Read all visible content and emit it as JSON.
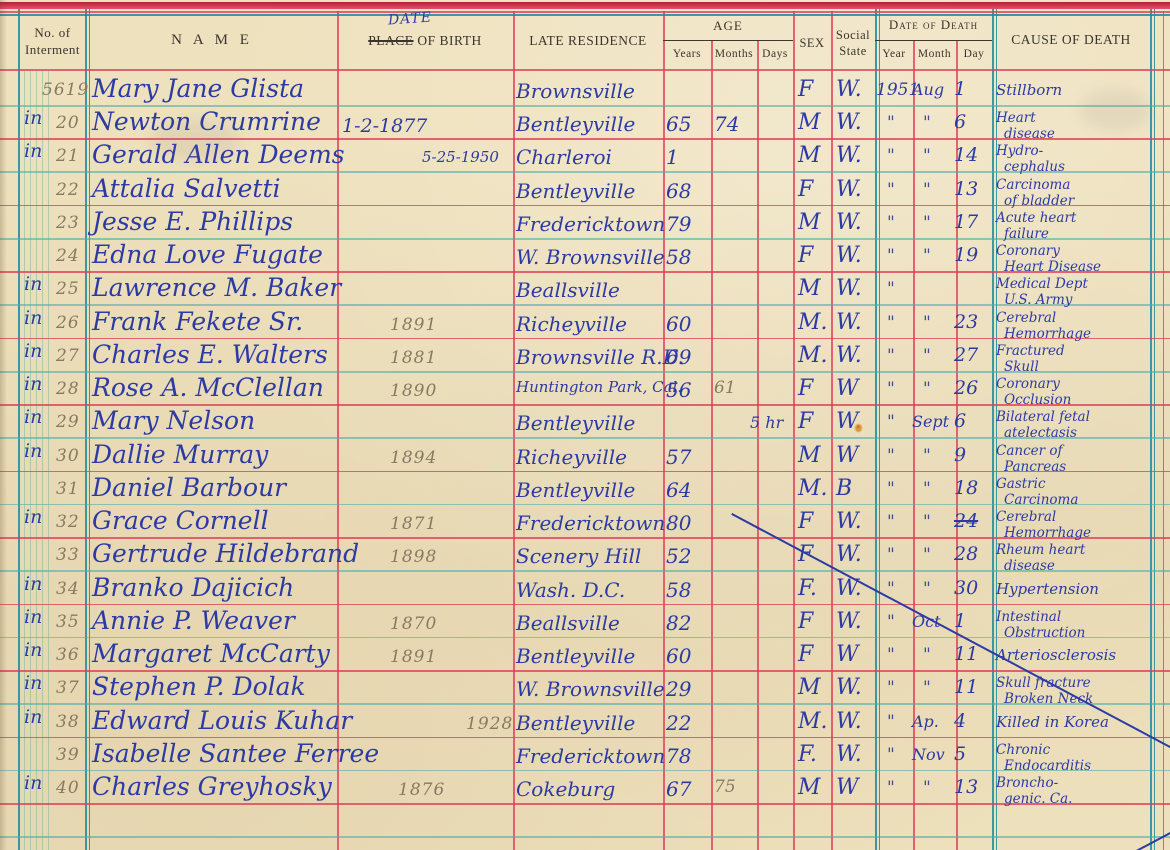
{
  "header": {
    "interment": "No. of\nInterment",
    "name": "N A M E",
    "birth_annotation": "DATE",
    "birth_struck": "PLACE",
    "birth_rest": " OF BIRTH",
    "residence": "LATE  RESIDENCE",
    "age": "AGE",
    "age_years": "Years",
    "age_months": "Months",
    "age_days": "Days",
    "sex": "SEX",
    "social": "Social\nState",
    "death": "Date of Death",
    "death_year": "Year",
    "death_month": "Month",
    "death_day": "Day",
    "cause": "CAUSE OF DEATH"
  },
  "rows": [
    {
      "no": "5619",
      "name": "Mary Jane Glista",
      "residence": "Brownsville",
      "sex": "F",
      "social": "W.",
      "dyear": "1951",
      "dmonth": "Aug",
      "dday": "1",
      "cause": [
        "Stillborn"
      ]
    },
    {
      "prefix": "in",
      "no": "20",
      "name": "Newton Crumrine",
      "birth": "1-2-1877",
      "birth_ink": true,
      "residence": "Bentleyville",
      "years": "65",
      "months": "74",
      "sex": "M",
      "social": "W.",
      "dyear": "\"",
      "dmonth": "\"",
      "dday": "6",
      "cause": [
        "Heart",
        "disease"
      ]
    },
    {
      "prefix": "in",
      "no": "21",
      "name": "Gerald Allen Deems",
      "birth": "5-25-1950",
      "birth_ink": true,
      "residence": "Charleroi",
      "years": "1",
      "sex": "M",
      "social": "W.",
      "dyear": "\"",
      "dmonth": "\"",
      "dday": "14",
      "cause": [
        "Hydro-",
        "cephalus"
      ]
    },
    {
      "no": "22",
      "name": "Attalia Salvetti",
      "residence": "Bentleyville",
      "years": "68",
      "sex": "F",
      "social": "W.",
      "dyear": "\"",
      "dmonth": "\"",
      "dday": "13",
      "cause": [
        "Carcinoma",
        "of bladder"
      ]
    },
    {
      "no": "23",
      "name": "Jesse E. Phillips",
      "residence": "Fredericktown",
      "years": "79",
      "sex": "M",
      "social": "W.",
      "dyear": "\"",
      "dmonth": "\"",
      "dday": "17",
      "cause": [
        "Acute heart",
        "failure"
      ]
    },
    {
      "no": "24",
      "name": "Edna Love Fugate",
      "residence": "W. Brownsville",
      "years": "58",
      "sex": "F",
      "social": "W.",
      "dyear": "\"",
      "dmonth": "\"",
      "dday": "19",
      "cause": [
        "Coronary",
        "Heart Disease"
      ]
    },
    {
      "prefix": "in",
      "no": "25",
      "name": "Lawrence M. Baker",
      "residence": "Beallsville",
      "sex": "M",
      "social": "W.",
      "dyear": "\"",
      "cause": [
        "Medical Dept",
        "U.S. Army"
      ]
    },
    {
      "prefix": "in",
      "no": "26",
      "name": "Frank Fekete Sr.",
      "birth": "1891",
      "residence": "Richeyville",
      "years": "60",
      "sex": "M.",
      "social": "W.",
      "dyear": "\"",
      "dmonth": "\"",
      "dday": "23",
      "cause": [
        "Cerebral",
        "Hemorrhage"
      ]
    },
    {
      "prefix": "in",
      "no": "27",
      "name": "Charles E. Walters",
      "birth": "1881",
      "residence": "Brownsville R.D.",
      "years": "69",
      "sex": "M.",
      "social": "W.",
      "dyear": "\"",
      "dmonth": "\"",
      "dday": "27",
      "cause": [
        "Fractured",
        "Skull"
      ]
    },
    {
      "prefix": "in",
      "no": "28",
      "name": "Rose A. McClellan",
      "birth": "1890",
      "residence": "Huntington Park, Cal.",
      "years": "56",
      "months": "61",
      "months_pencil": true,
      "sex": "F",
      "social": "W",
      "dyear": "\"",
      "dmonth": "\"",
      "dday": "26",
      "cause": [
        "Coronary",
        "Occlusion"
      ]
    },
    {
      "prefix": "in",
      "no": "29",
      "name": "Mary Nelson",
      "residence": "Bentleyville",
      "days": "5 hr",
      "sex": "F",
      "social": "W.",
      "dyear": "\"",
      "dmonth": "Sept",
      "dday": "6",
      "cause": [
        "Bilateral fetal",
        "atelectasis"
      ]
    },
    {
      "prefix": "in",
      "no": "30",
      "name": "Dallie Murray",
      "birth": "1894",
      "residence": "Richeyville",
      "years": "57",
      "sex": "M",
      "social": "W",
      "dyear": "\"",
      "dmonth": "\"",
      "dday": "9",
      "cause": [
        "Cancer of",
        "Pancreas"
      ]
    },
    {
      "no": "31",
      "name": "Daniel Barbour",
      "residence": "Bentleyville",
      "years": "64",
      "sex": "M.",
      "social": "B",
      "dyear": "\"",
      "dmonth": "\"",
      "dday": "18",
      "cause": [
        "Gastric",
        "Carcinoma"
      ]
    },
    {
      "prefix": "in",
      "no": "32",
      "name": "Grace Cornell",
      "birth": "1871",
      "residence": "Fredericktown",
      "years": "80",
      "sex": "F",
      "social": "W.",
      "dyear": "\"",
      "dmonth": "\"",
      "dday": "24",
      "dday_struck": true,
      "cause": [
        "Cerebral",
        "Hemorrhage"
      ]
    },
    {
      "no": "33",
      "name": "Gertrude Hildebrand",
      "birth": "1898",
      "residence": "Scenery Hill",
      "years": "52",
      "sex": "F",
      "social": "W.",
      "dyear": "\"",
      "dmonth": "\"",
      "dday": "28",
      "cause": [
        "Rheum heart",
        "disease"
      ]
    },
    {
      "prefix": "in",
      "no": "34",
      "name": "Branko Dajicich",
      "residence": "Wash. D.C.",
      "years": "58",
      "sex": "F.",
      "social": "W.",
      "dyear": "\"",
      "dmonth": "\"",
      "dday": "30",
      "cause": [
        "Hypertension"
      ]
    },
    {
      "prefix": "in",
      "no": "35",
      "name": "Annie P. Weaver",
      "birth": "1870",
      "residence": "Beallsville",
      "years": "82",
      "sex": "F",
      "social": "W.",
      "dyear": "\"",
      "dmonth": "Oct",
      "dday": "1",
      "cause": [
        "Intestinal",
        "Obstruction"
      ]
    },
    {
      "prefix": "in",
      "no": "36",
      "name": "Margaret McCarty",
      "birth": "1891",
      "residence": "Bentleyville",
      "years": "60",
      "sex": "F",
      "social": "W",
      "dyear": "\"",
      "dmonth": "\"",
      "dday": "11",
      "cause": [
        "Arteriosclerosis"
      ]
    },
    {
      "prefix": "in",
      "no": "37",
      "name": "Stephen P. Dolak",
      "residence": "W. Brownsville",
      "years": "29",
      "sex": "M",
      "social": "W.",
      "dyear": "\"",
      "dmonth": "\"",
      "dday": "11",
      "cause": [
        "Skull fracture",
        "Broken Neck"
      ]
    },
    {
      "prefix": "in",
      "no": "38",
      "name": "Edward Louis Kuhar",
      "birth": "1928",
      "residence": "Bentleyville",
      "years": "22",
      "sex": "M.",
      "social": "W.",
      "dyear": "\"",
      "dmonth": "Ap.",
      "dday": "4",
      "cause": [
        "Killed in Korea"
      ]
    },
    {
      "no": "39",
      "name": "Isabelle Santee Ferree",
      "residence": "Fredericktown",
      "years": "78",
      "sex": "F.",
      "social": "W.",
      "dyear": "\"",
      "dmonth": "Nov",
      "dday": "5",
      "cause": [
        "Chronic",
        "Endocarditis"
      ]
    },
    {
      "prefix": "in",
      "no": "40",
      "name": "Charles Greyhosky",
      "birth": "1876",
      "residence": "Cokeburg",
      "years": "67",
      "years_struck": true,
      "months": "75",
      "months_pencil": true,
      "sex": "M",
      "social": "W",
      "dyear": "\"",
      "dmonth": "\"",
      "dday": "13",
      "cause": [
        "Broncho-",
        "genic. Ca."
      ]
    }
  ]
}
